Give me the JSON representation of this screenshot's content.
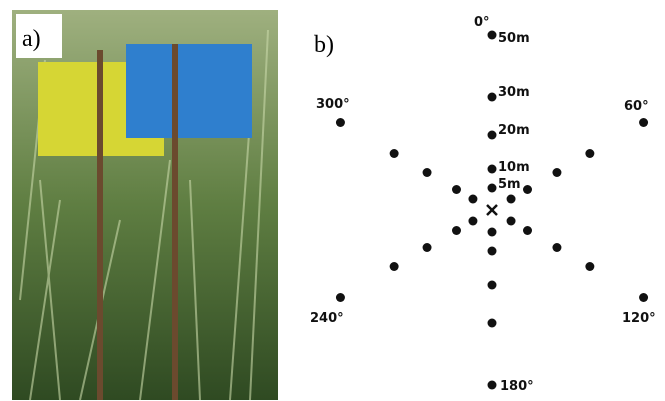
{
  "panel_a": {
    "label": "a)"
  },
  "panel_b": {
    "label": "b)",
    "directions": [
      "0°",
      "60°",
      "120°",
      "180°",
      "240°",
      "300°"
    ],
    "distances": [
      "50m",
      "30m",
      "20m",
      "10m",
      "5m"
    ]
  }
}
